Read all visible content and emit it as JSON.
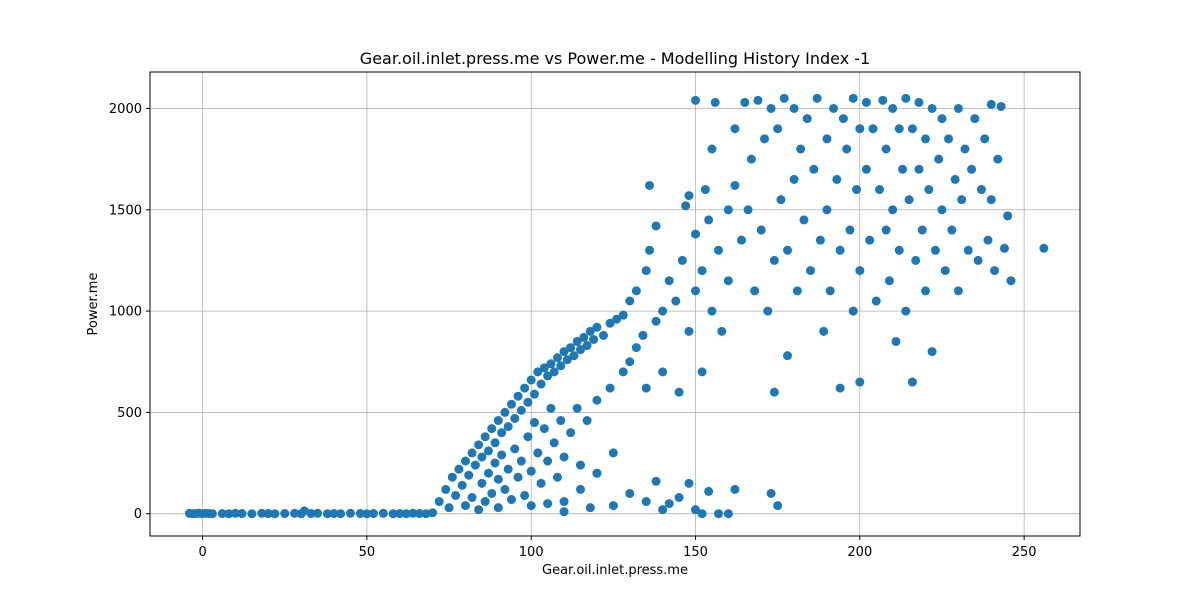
{
  "chart_data": {
    "type": "scatter",
    "title": "Gear.oil.inlet.press.me vs Power.me - Modelling History Index -1",
    "xlabel": "Gear.oil.inlet.press.me",
    "ylabel": "Power.me",
    "xlim": [
      -16,
      267
    ],
    "ylim": [
      -110,
      2180
    ],
    "xticks": [
      0,
      50,
      100,
      150,
      200,
      250
    ],
    "yticks": [
      0,
      500,
      1000,
      1500,
      2000
    ],
    "grid": true,
    "legend": "none",
    "marker_color": "#1f77b4",
    "points": [
      [
        -4,
        2
      ],
      [
        -3,
        0
      ],
      [
        -2,
        1
      ],
      [
        -1,
        3
      ],
      [
        0,
        0
      ],
      [
        1,
        2
      ],
      [
        2,
        1
      ],
      [
        3,
        0
      ],
      [
        6,
        1
      ],
      [
        8,
        0
      ],
      [
        10,
        2
      ],
      [
        12,
        1
      ],
      [
        15,
        0
      ],
      [
        18,
        2
      ],
      [
        20,
        1
      ],
      [
        22,
        0
      ],
      [
        25,
        1
      ],
      [
        28,
        2
      ],
      [
        30,
        0
      ],
      [
        31,
        14
      ],
      [
        33,
        1
      ],
      [
        35,
        2
      ],
      [
        38,
        0
      ],
      [
        40,
        1
      ],
      [
        42,
        0
      ],
      [
        45,
        2
      ],
      [
        48,
        1
      ],
      [
        50,
        0
      ],
      [
        52,
        1
      ],
      [
        55,
        2
      ],
      [
        58,
        0
      ],
      [
        60,
        1
      ],
      [
        62,
        0
      ],
      [
        64,
        2
      ],
      [
        66,
        1
      ],
      [
        68,
        0
      ],
      [
        70,
        5
      ],
      [
        72,
        60
      ],
      [
        74,
        120
      ],
      [
        75,
        30
      ],
      [
        76,
        180
      ],
      [
        77,
        90
      ],
      [
        78,
        220
      ],
      [
        79,
        140
      ],
      [
        80,
        260
      ],
      [
        80,
        40
      ],
      [
        81,
        190
      ],
      [
        82,
        300
      ],
      [
        82,
        80
      ],
      [
        83,
        240
      ],
      [
        84,
        340
      ],
      [
        84,
        20
      ],
      [
        85,
        280
      ],
      [
        85,
        150
      ],
      [
        86,
        380
      ],
      [
        86,
        60
      ],
      [
        87,
        310
      ],
      [
        87,
        200
      ],
      [
        88,
        420
      ],
      [
        88,
        100
      ],
      [
        89,
        350
      ],
      [
        89,
        250
      ],
      [
        90,
        460
      ],
      [
        90,
        30
      ],
      [
        90,
        170
      ],
      [
        91,
        400
      ],
      [
        91,
        290
      ],
      [
        92,
        500
      ],
      [
        92,
        120
      ],
      [
        93,
        430
      ],
      [
        93,
        220
      ],
      [
        94,
        540
      ],
      [
        94,
        70
      ],
      [
        95,
        470
      ],
      [
        95,
        320
      ],
      [
        96,
        580
      ],
      [
        96,
        180
      ],
      [
        97,
        510
      ],
      [
        97,
        260
      ],
      [
        98,
        620
      ],
      [
        98,
        90
      ],
      [
        99,
        550
      ],
      [
        99,
        380
      ],
      [
        100,
        660
      ],
      [
        100,
        210
      ],
      [
        100,
        40
      ],
      [
        101,
        590
      ],
      [
        101,
        450
      ],
      [
        102,
        700
      ],
      [
        102,
        300
      ],
      [
        103,
        640
      ],
      [
        103,
        150
      ],
      [
        104,
        720
      ],
      [
        104,
        420
      ],
      [
        105,
        680
      ],
      [
        105,
        260
      ],
      [
        106,
        740
      ],
      [
        106,
        520
      ],
      [
        107,
        700
      ],
      [
        107,
        350
      ],
      [
        108,
        770
      ],
      [
        108,
        180
      ],
      [
        109,
        730
      ],
      [
        109,
        460
      ],
      [
        110,
        800
      ],
      [
        110,
        280
      ],
      [
        110,
        60
      ],
      [
        111,
        760
      ],
      [
        112,
        820
      ],
      [
        112,
        400
      ],
      [
        113,
        780
      ],
      [
        114,
        850
      ],
      [
        114,
        520
      ],
      [
        115,
        810
      ],
      [
        115,
        240
      ],
      [
        116,
        870
      ],
      [
        117,
        830
      ],
      [
        117,
        460
      ],
      [
        118,
        900
      ],
      [
        119,
        860
      ],
      [
        120,
        920
      ],
      [
        120,
        560
      ],
      [
        120,
        200
      ],
      [
        122,
        880
      ],
      [
        124,
        940
      ],
      [
        124,
        620
      ],
      [
        125,
        300
      ],
      [
        126,
        960
      ],
      [
        128,
        700
      ],
      [
        128,
        980
      ],
      [
        130,
        750
      ],
      [
        130,
        1050
      ],
      [
        132,
        820
      ],
      [
        132,
        1100
      ],
      [
        134,
        880
      ],
      [
        135,
        1200
      ],
      [
        135,
        620
      ],
      [
        136,
        1300
      ],
      [
        136,
        1620
      ],
      [
        138,
        950
      ],
      [
        138,
        1420
      ],
      [
        140,
        1000
      ],
      [
        140,
        700
      ],
      [
        142,
        1150
      ],
      [
        144,
        1050
      ],
      [
        145,
        600
      ],
      [
        146,
        1250
      ],
      [
        147,
        1520
      ],
      [
        148,
        900
      ],
      [
        148,
        1570
      ],
      [
        150,
        1100
      ],
      [
        150,
        1380
      ],
      [
        150,
        2040
      ],
      [
        152,
        1200
      ],
      [
        152,
        700
      ],
      [
        153,
        1600
      ],
      [
        154,
        1450
      ],
      [
        155,
        1800
      ],
      [
        155,
        1000
      ],
      [
        156,
        2030
      ],
      [
        157,
        1300
      ],
      [
        158,
        900
      ],
      [
        160,
        1500
      ],
      [
        160,
        1150
      ],
      [
        162,
        1620
      ],
      [
        162,
        1900
      ],
      [
        164,
        1350
      ],
      [
        165,
        2030
      ],
      [
        166,
        1500
      ],
      [
        167,
        1750
      ],
      [
        168,
        1100
      ],
      [
        169,
        2040
      ],
      [
        170,
        1400
      ],
      [
        171,
        1850
      ],
      [
        172,
        1000
      ],
      [
        173,
        2000
      ],
      [
        174,
        1250
      ],
      [
        174,
        600
      ],
      [
        175,
        1900
      ],
      [
        176,
        1550
      ],
      [
        177,
        2050
      ],
      [
        178,
        1300
      ],
      [
        178,
        780
      ],
      [
        180,
        1650
      ],
      [
        180,
        2000
      ],
      [
        181,
        1100
      ],
      [
        182,
        1800
      ],
      [
        183,
        1450
      ],
      [
        184,
        1950
      ],
      [
        185,
        1200
      ],
      [
        186,
        1700
      ],
      [
        187,
        2050
      ],
      [
        188,
        1350
      ],
      [
        189,
        900
      ],
      [
        190,
        1850
      ],
      [
        190,
        1500
      ],
      [
        191,
        1100
      ],
      [
        192,
        2000
      ],
      [
        193,
        1650
      ],
      [
        194,
        620
      ],
      [
        194,
        1300
      ],
      [
        195,
        1950
      ],
      [
        196,
        1800
      ],
      [
        197,
        1400
      ],
      [
        198,
        2050
      ],
      [
        198,
        1000
      ],
      [
        199,
        1600
      ],
      [
        200,
        1900
      ],
      [
        200,
        1200
      ],
      [
        200,
        650
      ],
      [
        202,
        2030
      ],
      [
        202,
        1700
      ],
      [
        203,
        1350
      ],
      [
        204,
        1900
      ],
      [
        205,
        1050
      ],
      [
        206,
        1600
      ],
      [
        207,
        2040
      ],
      [
        208,
        1400
      ],
      [
        208,
        1800
      ],
      [
        209,
        1150
      ],
      [
        210,
        2000
      ],
      [
        210,
        1500
      ],
      [
        211,
        850
      ],
      [
        212,
        1900
      ],
      [
        212,
        1300
      ],
      [
        213,
        1700
      ],
      [
        214,
        2050
      ],
      [
        214,
        1000
      ],
      [
        215,
        1550
      ],
      [
        216,
        1900
      ],
      [
        216,
        650
      ],
      [
        217,
        1250
      ],
      [
        218,
        2030
      ],
      [
        218,
        1700
      ],
      [
        219,
        1400
      ],
      [
        220,
        1850
      ],
      [
        220,
        1100
      ],
      [
        221,
        1600
      ],
      [
        222,
        2000
      ],
      [
        222,
        800
      ],
      [
        223,
        1300
      ],
      [
        224,
        1750
      ],
      [
        225,
        1950
      ],
      [
        225,
        1500
      ],
      [
        226,
        1200
      ],
      [
        227,
        1850
      ],
      [
        228,
        1400
      ],
      [
        229,
        1650
      ],
      [
        230,
        2000
      ],
      [
        230,
        1100
      ],
      [
        231,
        1550
      ],
      [
        232,
        1800
      ],
      [
        233,
        1300
      ],
      [
        234,
        1700
      ],
      [
        235,
        1950
      ],
      [
        236,
        1250
      ],
      [
        237,
        1600
      ],
      [
        238,
        1850
      ],
      [
        239,
        1350
      ],
      [
        240,
        1550
      ],
      [
        240,
        2020
      ],
      [
        241,
        1200
      ],
      [
        242,
        1750
      ],
      [
        243,
        2010
      ],
      [
        244,
        1310
      ],
      [
        245,
        1470
      ],
      [
        246,
        1150
      ],
      [
        256,
        1310
      ],
      [
        105,
        50
      ],
      [
        110,
        10
      ],
      [
        115,
        120
      ],
      [
        118,
        30
      ],
      [
        120,
        200
      ],
      [
        125,
        40
      ],
      [
        130,
        100
      ],
      [
        135,
        60
      ],
      [
        138,
        160
      ],
      [
        140,
        20
      ],
      [
        142,
        50
      ],
      [
        145,
        80
      ],
      [
        148,
        150
      ],
      [
        150,
        20
      ],
      [
        152,
        0
      ],
      [
        154,
        110
      ],
      [
        157,
        0
      ],
      [
        160,
        0
      ],
      [
        162,
        120
      ],
      [
        173,
        100
      ],
      [
        175,
        40
      ]
    ]
  }
}
